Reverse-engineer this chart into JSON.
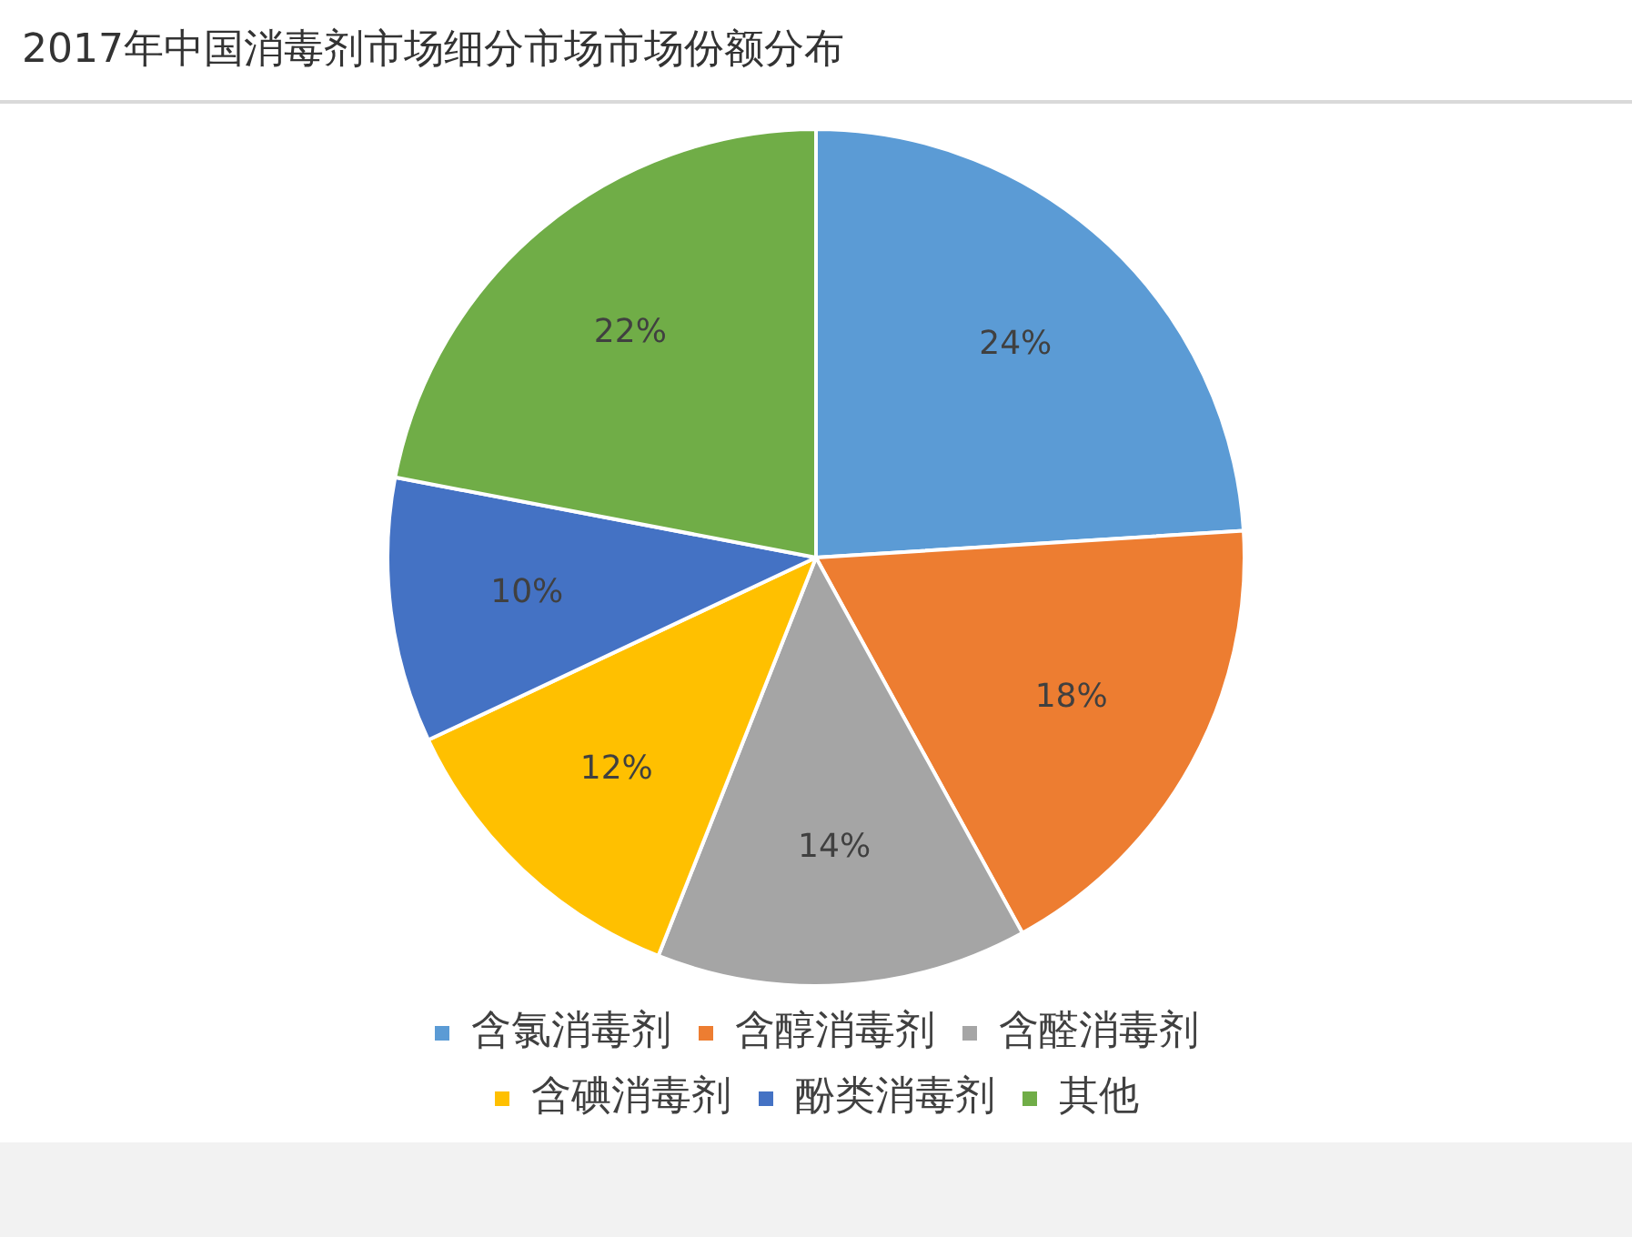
{
  "chart_data": {
    "type": "pie",
    "title": "2017年中国消毒剂市场细分市场市场份额分布",
    "categories": [
      "含氯消毒剂",
      "含醇消毒剂",
      "含醛消毒剂",
      "含碘消毒剂",
      "酚类消毒剂",
      "其他"
    ],
    "values": [
      24,
      18,
      14,
      12,
      10,
      22
    ],
    "colors": [
      "#5b9bd5",
      "#ed7d31",
      "#a5a5a5",
      "#ffc000",
      "#4472c4",
      "#70ad47"
    ],
    "value_labels": [
      "24%",
      "18%",
      "14%",
      "12%",
      "10%",
      "22%"
    ],
    "legend": "bottom"
  }
}
